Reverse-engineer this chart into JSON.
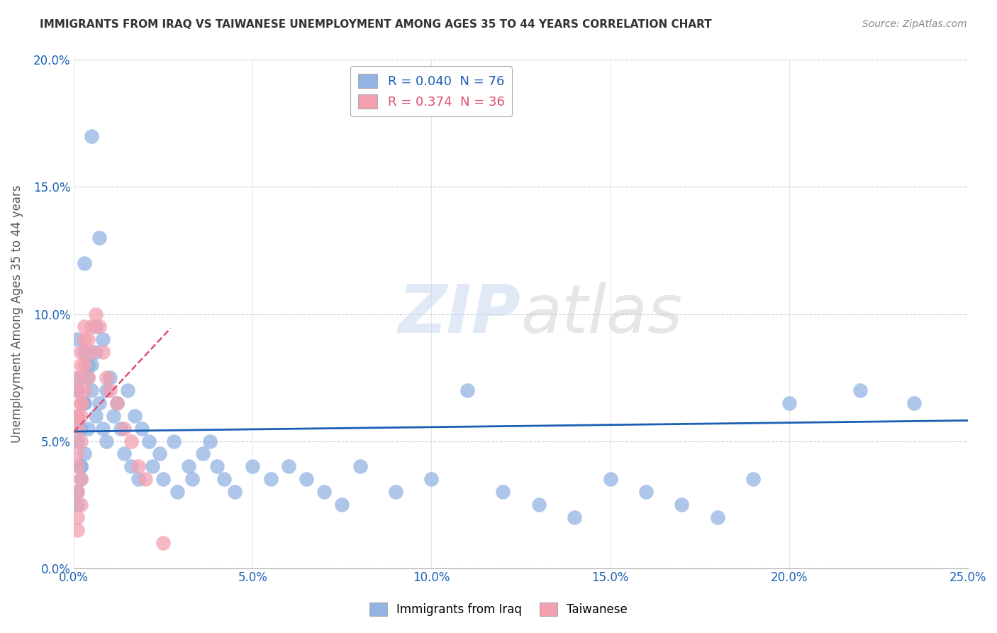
{
  "title": "IMMIGRANTS FROM IRAQ VS TAIWANESE UNEMPLOYMENT AMONG AGES 35 TO 44 YEARS CORRELATION CHART",
  "source": "Source: ZipAtlas.com",
  "xlim": [
    0,
    0.25
  ],
  "ylim": [
    0,
    0.2
  ],
  "legend1_label": "R = 0.040  N = 76",
  "legend2_label": "R = 0.374  N = 36",
  "legend_series1": "Immigrants from Iraq",
  "legend_series2": "Taiwanese",
  "blue_color": "#92b4e3",
  "pink_color": "#f4a0b0",
  "blue_line_color": "#1a5fb4",
  "pink_line_color": "#e05070",
  "watermark_zip": "ZIP",
  "watermark_atlas": "atlas",
  "background_color": "#ffffff",
  "iraq_x": [
    0.002,
    0.001,
    0.003,
    0.001,
    0.002,
    0.004,
    0.001,
    0.003,
    0.002,
    0.001,
    0.005,
    0.003,
    0.002,
    0.004,
    0.001,
    0.003,
    0.002,
    0.001,
    0.006,
    0.004,
    0.008,
    0.007,
    0.005,
    0.009,
    0.006,
    0.01,
    0.008,
    0.012,
    0.009,
    0.011,
    0.015,
    0.013,
    0.017,
    0.014,
    0.019,
    0.016,
    0.021,
    0.018,
    0.024,
    0.022,
    0.028,
    0.025,
    0.032,
    0.029,
    0.036,
    0.033,
    0.04,
    0.038,
    0.045,
    0.042,
    0.05,
    0.055,
    0.06,
    0.065,
    0.07,
    0.075,
    0.08,
    0.09,
    0.1,
    0.11,
    0.12,
    0.13,
    0.14,
    0.15,
    0.16,
    0.17,
    0.18,
    0.19,
    0.2,
    0.22,
    0.235,
    0.005,
    0.007,
    0.003,
    0.006,
    0.004
  ],
  "iraq_y": [
    0.075,
    0.07,
    0.065,
    0.09,
    0.055,
    0.08,
    0.05,
    0.085,
    0.04,
    0.06,
    0.07,
    0.045,
    0.035,
    0.055,
    0.025,
    0.065,
    0.04,
    0.03,
    0.085,
    0.075,
    0.09,
    0.065,
    0.08,
    0.07,
    0.06,
    0.075,
    0.055,
    0.065,
    0.05,
    0.06,
    0.07,
    0.055,
    0.06,
    0.045,
    0.055,
    0.04,
    0.05,
    0.035,
    0.045,
    0.04,
    0.05,
    0.035,
    0.04,
    0.03,
    0.045,
    0.035,
    0.04,
    0.05,
    0.03,
    0.035,
    0.04,
    0.035,
    0.04,
    0.035,
    0.03,
    0.025,
    0.04,
    0.03,
    0.035,
    0.07,
    0.03,
    0.025,
    0.02,
    0.035,
    0.03,
    0.025,
    0.02,
    0.035,
    0.065,
    0.07,
    0.065,
    0.17,
    0.13,
    0.12,
    0.095,
    0.08
  ],
  "taiwan_x": [
    0.001,
    0.002,
    0.001,
    0.001,
    0.002,
    0.001,
    0.001,
    0.002,
    0.001,
    0.002,
    0.001,
    0.003,
    0.002,
    0.001,
    0.002,
    0.003,
    0.001,
    0.002,
    0.003,
    0.002,
    0.004,
    0.003,
    0.005,
    0.004,
    0.006,
    0.005,
    0.007,
    0.008,
    0.009,
    0.01,
    0.012,
    0.014,
    0.016,
    0.018,
    0.02,
    0.025
  ],
  "taiwan_y": [
    0.07,
    0.065,
    0.06,
    0.055,
    0.05,
    0.045,
    0.04,
    0.035,
    0.03,
    0.025,
    0.02,
    0.09,
    0.085,
    0.075,
    0.065,
    0.095,
    0.015,
    0.08,
    0.07,
    0.06,
    0.09,
    0.08,
    0.095,
    0.075,
    0.1,
    0.085,
    0.095,
    0.085,
    0.075,
    0.07,
    0.065,
    0.055,
    0.05,
    0.04,
    0.035,
    0.01
  ]
}
